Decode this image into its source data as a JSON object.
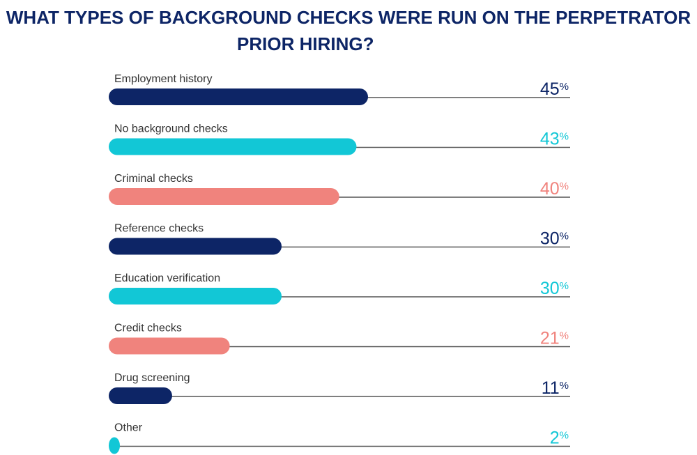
{
  "title_line1": "WHAT TYPES OF BACKGROUND CHECKS WERE RUN ON THE PERPETRATOR",
  "title_line2": "PRIOR HIRING?",
  "colors": {
    "navy": "#0d2566",
    "teal": "#12c7d6",
    "salmon": "#f0837d",
    "rule": "#555555",
    "label": "#333333"
  },
  "chart_data": {
    "type": "bar",
    "orientation": "horizontal",
    "title": "WHAT TYPES OF BACKGROUND CHECKS WERE RUN ON THE PERPETRATOR PRIOR HIRING?",
    "categories": [
      "Employment history",
      "No background checks",
      "Criminal checks",
      "Reference checks",
      "Education verification",
      "Credit checks",
      "Drug screening",
      "Other"
    ],
    "values": [
      45,
      43,
      40,
      30,
      30,
      21,
      11,
      2
    ],
    "value_labels": [
      "45",
      "43",
      "40",
      "30",
      "30",
      "21",
      "11",
      "2"
    ],
    "unit": "%",
    "bar_colors": [
      "navy",
      "teal",
      "salmon",
      "navy",
      "teal",
      "salmon",
      "navy",
      "teal"
    ],
    "xlim": [
      0,
      80
    ]
  }
}
